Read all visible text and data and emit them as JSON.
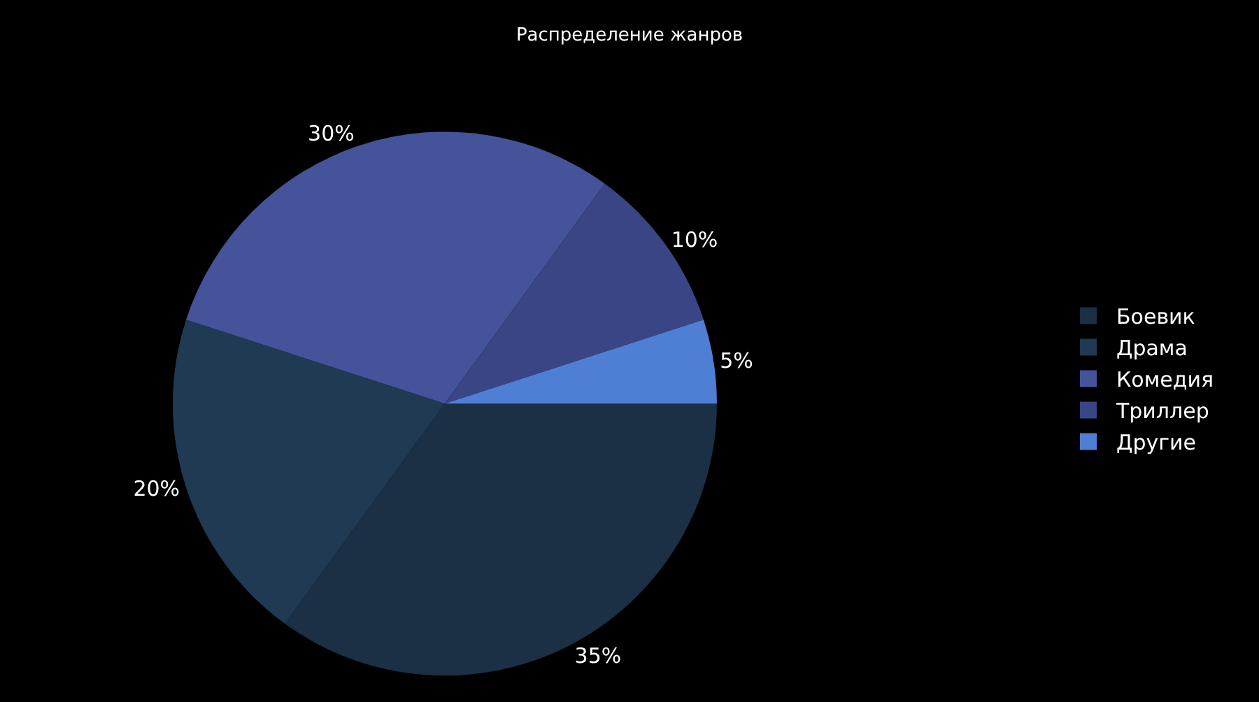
{
  "chart_data": {
    "type": "pie",
    "title": "Распределение жанров",
    "categories": [
      "Боевик",
      "Драма",
      "Комедия",
      "Триллер",
      "Другие"
    ],
    "values": [
      35,
      20,
      30,
      10,
      5
    ],
    "colors": [
      "#1b2f45",
      "#1f3a52",
      "#44539a",
      "#3a4585",
      "#4f7fd4"
    ],
    "value_labels": [
      "35%",
      "20%",
      "30%",
      "10%",
      "5%"
    ],
    "legend": "right"
  }
}
